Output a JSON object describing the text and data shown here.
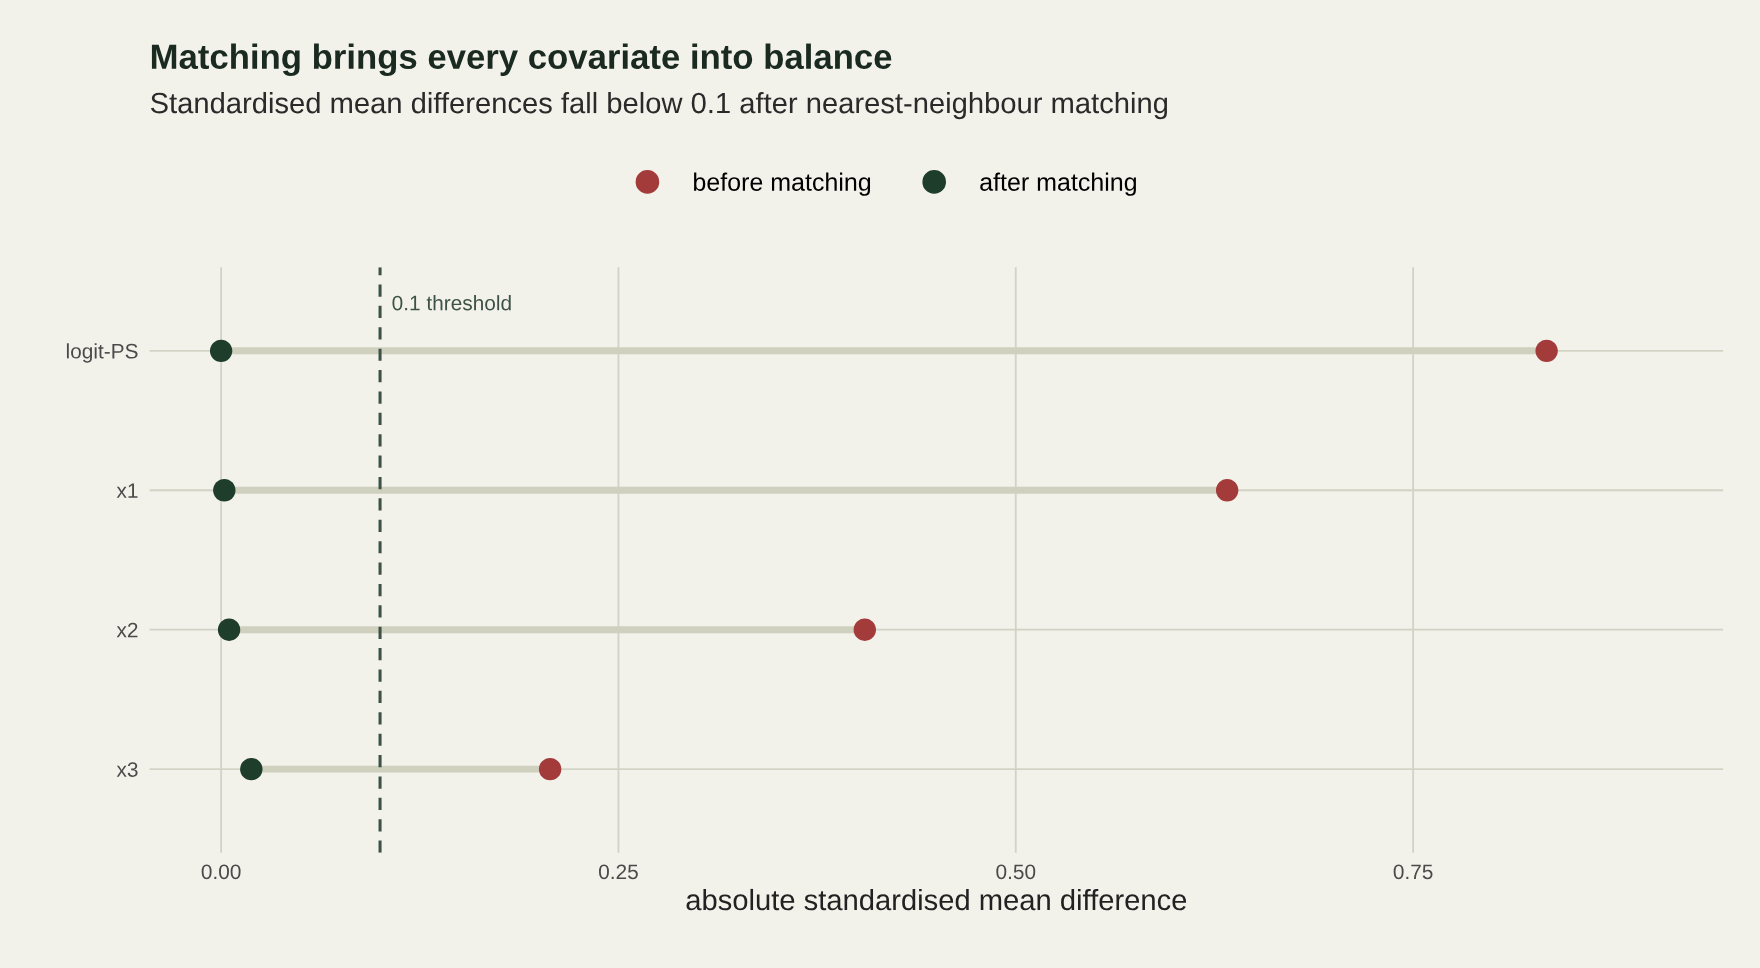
{
  "chart_data": {
    "type": "scatter",
    "orientation": "horizontal",
    "title": "Matching brings every covariate into balance",
    "subtitle": "Standardised mean differences fall below 0.1 after nearest-neighbour matching",
    "xlabel": "absolute standardised mean difference",
    "categories": [
      "logit-PS",
      "x1",
      "x2",
      "x3"
    ],
    "series": [
      {
        "name": "before matching",
        "color": "#a33b3b",
        "values": [
          0.834,
          0.633,
          0.405,
          0.207
        ]
      },
      {
        "name": "after matching",
        "color": "#1f3d2b",
        "values": [
          0.0,
          0.002,
          0.005,
          0.019
        ]
      }
    ],
    "xlim": [
      -0.045,
      0.945
    ],
    "xticks": [
      {
        "value": 0,
        "label": "0.00"
      },
      {
        "value": 0.25,
        "label": "0.25"
      },
      {
        "value": 0.5,
        "label": "0.50"
      },
      {
        "value": 0.75,
        "label": "0.75"
      }
    ],
    "ref_lines": [
      {
        "axis": "x",
        "value": 0.1,
        "label": "0.1 threshold",
        "color": "#3d5246",
        "line_style": "dashed"
      }
    ],
    "grid": true,
    "legend": "top",
    "marker": "circle"
  }
}
